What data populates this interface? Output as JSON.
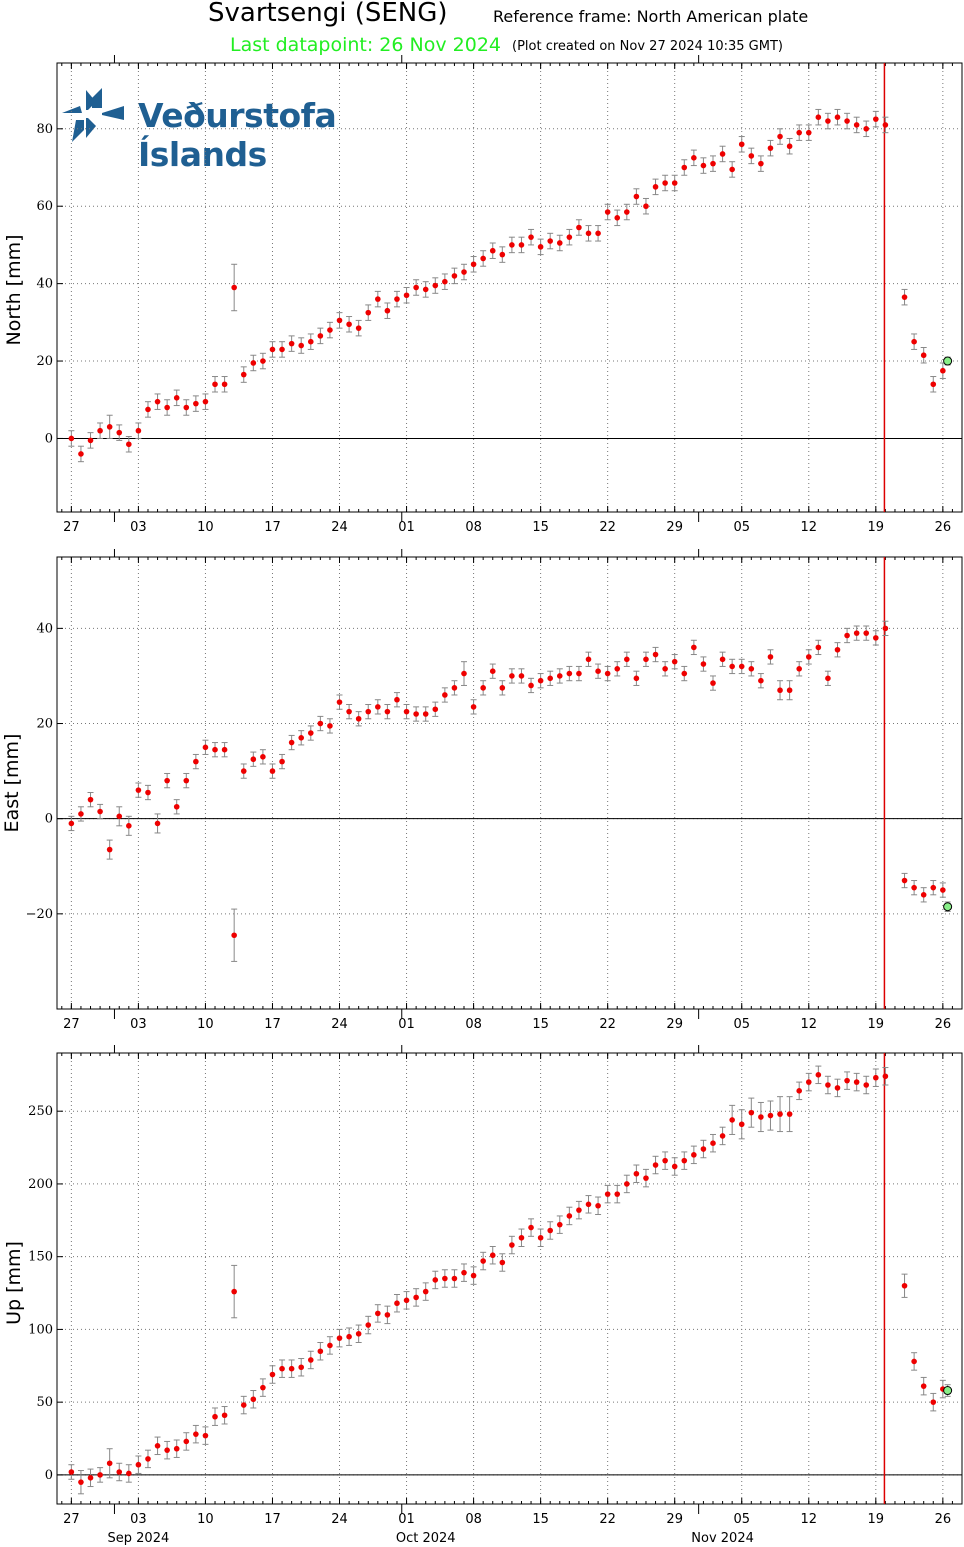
{
  "header": {
    "title": "Svartsengi (SENG)",
    "reference_frame": "Reference frame: North American plate",
    "last_datapoint": "Last datapoint: 26 Nov 2024",
    "plot_created": "(Plot created on Nov 27 2024 10:35 GMT)"
  },
  "logo": {
    "text": "Veðurstofa Íslands",
    "icon": "imo-compass-logo-icon",
    "color": "#1f5f92"
  },
  "colors": {
    "points": "#ee0000",
    "errorbars": "#888888",
    "event_line": "#dd0000",
    "last_point_fill": "#88ee88",
    "last_datapoint_text": "#22ee22"
  },
  "chart_data": [
    {
      "type": "scatter",
      "ylabel": "North [mm]",
      "ylim": [
        -19,
        97
      ],
      "yticks": [
        0,
        20,
        40,
        60,
        80
      ],
      "yticklabels": [
        "0",
        "20",
        "40",
        "60",
        "80"
      ],
      "x_start": "2024-08-27",
      "xlim_days": [
        -1.5,
        88
      ],
      "xtick_days": [
        0,
        7,
        14,
        21,
        28,
        35,
        42,
        49,
        56,
        63,
        70,
        77,
        84,
        91
      ],
      "xticklabels": [
        "27",
        "03",
        "10",
        "17",
        "24",
        "01",
        "08",
        "15",
        "22",
        "29",
        "05",
        "12",
        "19",
        "26"
      ],
      "event_day": 84.9,
      "grid": true,
      "values": [
        0,
        -4,
        -0.5,
        2,
        3,
        1.5,
        -1.5,
        2,
        7.5,
        9.5,
        8,
        10.5,
        8,
        9,
        9.5,
        14,
        14,
        39,
        16.5,
        19.5,
        20,
        23,
        23,
        24.5,
        24,
        25,
        26.5,
        28,
        30.5,
        29.5,
        28.5,
        32.5,
        36,
        33,
        36,
        37,
        39,
        38.5,
        39.5,
        40.5,
        42,
        43,
        45,
        46.5,
        48.5,
        47.5,
        50,
        50,
        52,
        49.5,
        51,
        50.5,
        52,
        54.5,
        53,
        53,
        58.5,
        57,
        58.5,
        62.5,
        60,
        65,
        66,
        66,
        70,
        72.5,
        70.5,
        71,
        73.5,
        69.5,
        76,
        73,
        71,
        75,
        78,
        75.5,
        79,
        79,
        83,
        82,
        83,
        82,
        81,
        80,
        82.5,
        81,
        null,
        36.5,
        25,
        21.5,
        14,
        17.5,
        20
      ],
      "errors": [
        2,
        2,
        2,
        2,
        3,
        2,
        2,
        2,
        2,
        2,
        2,
        2,
        2,
        2,
        2,
        2,
        2,
        6,
        2,
        2,
        2,
        2,
        2,
        2,
        2,
        2,
        2,
        2,
        2,
        2,
        2,
        2,
        2,
        2,
        2,
        2,
        2,
        2,
        2,
        2,
        2,
        2,
        2,
        2,
        2,
        2,
        2,
        2,
        2,
        2,
        2,
        2,
        2,
        2,
        2,
        2,
        2,
        2,
        2,
        2,
        2,
        2,
        2,
        2,
        2,
        2,
        2,
        2,
        2,
        2,
        2,
        2,
        2,
        2,
        2,
        2,
        2,
        2,
        2,
        2,
        2,
        2,
        2,
        2,
        2,
        2,
        null,
        2,
        2,
        2,
        2,
        2,
        1
      ],
      "last_point": {
        "day": 91.5,
        "value": 20
      }
    },
    {
      "type": "scatter",
      "ylabel": "East [mm]",
      "ylim": [
        -40,
        55
      ],
      "yticks": [
        -20,
        0,
        20,
        40
      ],
      "yticklabels": [
        "−20",
        "0",
        "20",
        "40"
      ],
      "x_start": "2024-08-27",
      "xlim_days": [
        -1.5,
        88
      ],
      "xtick_days": [
        0,
        7,
        14,
        21,
        28,
        35,
        42,
        49,
        56,
        63,
        70,
        77,
        84,
        91
      ],
      "xticklabels": [
        "27",
        "03",
        "10",
        "17",
        "24",
        "01",
        "08",
        "15",
        "22",
        "29",
        "05",
        "12",
        "19",
        "26"
      ],
      "event_day": 84.9,
      "grid": true,
      "values": [
        -1,
        1,
        4,
        1.5,
        -6.5,
        0.5,
        -1.5,
        6,
        5.5,
        -1,
        8,
        2.5,
        8,
        12,
        15,
        14.5,
        14.5,
        -24.5,
        10,
        12.5,
        13,
        10,
        12,
        16,
        17,
        18,
        20,
        19.5,
        24.5,
        22.5,
        21,
        22.5,
        23.5,
        22.5,
        25,
        22.5,
        22,
        22,
        23,
        26,
        27.5,
        30.5,
        23.5,
        27.5,
        31,
        27.5,
        30,
        30,
        28,
        29,
        29.5,
        30,
        30.5,
        30.5,
        33.5,
        31,
        30.5,
        31.5,
        33.5,
        29.5,
        33.5,
        34.5,
        31.5,
        33,
        30.5,
        36,
        32.5,
        28.5,
        33.5,
        32,
        32,
        31.5,
        29,
        34,
        27,
        27,
        31.5,
        34,
        36,
        29.5,
        35.5,
        38.5,
        39,
        39,
        38,
        40,
        null,
        -13,
        -14.5,
        -16,
        -14.5,
        -15,
        -18.5
      ],
      "errors": [
        1.5,
        1.5,
        1.5,
        1.5,
        2,
        2,
        2,
        1.5,
        1.5,
        2,
        1.5,
        1.5,
        1.5,
        1.5,
        1.5,
        1.5,
        1.5,
        5.5,
        1.5,
        1.5,
        1.5,
        1.5,
        1.5,
        1.5,
        1.5,
        1.5,
        1.5,
        1.5,
        1.5,
        1.5,
        1.5,
        1.5,
        1.5,
        1.5,
        1.5,
        1.5,
        1.5,
        1.5,
        1.5,
        1.5,
        1.5,
        2.5,
        1.5,
        1.5,
        1.5,
        1.5,
        1.5,
        1.5,
        1.5,
        1.5,
        1.5,
        1.5,
        1.5,
        1.5,
        1.5,
        1.5,
        1.5,
        1.5,
        1.5,
        1.5,
        1.5,
        1.5,
        1.5,
        1.5,
        1.5,
        1.5,
        1.5,
        1.5,
        1.5,
        1.5,
        1.5,
        1.5,
        1.5,
        1.5,
        2,
        2,
        1.5,
        1.5,
        1.5,
        1.5,
        1.5,
        1.5,
        1.5,
        1.5,
        1.5,
        1.5,
        null,
        1.5,
        1.5,
        1.5,
        1.5,
        1.5,
        1
      ]
    },
    {
      "type": "scatter",
      "ylabel": "Up [mm]",
      "ylim": [
        -20,
        290
      ],
      "yticks": [
        0,
        50,
        100,
        150,
        200,
        250
      ],
      "yticklabels": [
        "0",
        "50",
        "100",
        "150",
        "200",
        "250"
      ],
      "x_start": "2024-08-27",
      "xlim_days": [
        -1.5,
        88
      ],
      "xtick_days": [
        0,
        7,
        14,
        21,
        28,
        35,
        42,
        49,
        56,
        63,
        70,
        77,
        84,
        91
      ],
      "xticklabels": [
        "27",
        "03",
        "10",
        "17",
        "24",
        "01",
        "08",
        "15",
        "22",
        "29",
        "05",
        "12",
        "19",
        "26"
      ],
      "month_labels": [
        {
          "day": 7,
          "label": "Sep 2024"
        },
        {
          "day": 37,
          "label": "Oct 2024"
        },
        {
          "day": 68,
          "label": "Nov 2024"
        }
      ],
      "event_day": 84.9,
      "grid": true,
      "values": [
        2,
        -5,
        -2,
        0,
        8,
        2,
        1,
        7,
        11,
        20,
        17,
        18,
        23,
        28,
        27,
        40,
        41,
        126,
        48,
        52,
        60,
        69,
        73,
        73,
        74,
        79,
        85,
        89,
        94,
        95,
        97,
        103,
        111,
        110,
        118,
        120,
        122,
        126,
        134,
        135,
        135,
        139,
        137,
        147,
        151,
        146,
        158,
        163,
        170,
        163,
        168,
        172,
        178,
        182,
        186,
        185,
        193,
        193,
        200,
        207,
        204,
        213,
        216,
        212,
        216,
        220,
        224,
        228,
        233,
        244,
        241,
        249,
        246,
        247,
        248,
        248,
        264,
        270,
        275,
        268,
        266,
        271,
        270,
        268,
        273,
        274,
        null,
        130,
        78,
        61,
        50,
        59,
        58
      ],
      "errors": [
        5,
        8,
        6,
        5,
        10,
        6,
        6,
        6,
        6,
        6,
        6,
        6,
        6,
        6,
        6,
        6,
        6,
        18,
        6,
        6,
        6,
        6,
        6,
        6,
        6,
        6,
        6,
        6,
        6,
        6,
        6,
        6,
        6,
        6,
        6,
        6,
        6,
        6,
        6,
        6,
        6,
        6,
        6,
        6,
        6,
        6,
        6,
        6,
        6,
        6,
        6,
        6,
        6,
        6,
        6,
        6,
        6,
        6,
        6,
        6,
        6,
        6,
        6,
        6,
        6,
        6,
        6,
        6,
        6,
        10,
        10,
        10,
        10,
        10,
        12,
        12,
        6,
        6,
        6,
        6,
        6,
        6,
        6,
        6,
        6,
        6,
        null,
        8,
        6,
        6,
        6,
        6,
        4
      ]
    }
  ]
}
